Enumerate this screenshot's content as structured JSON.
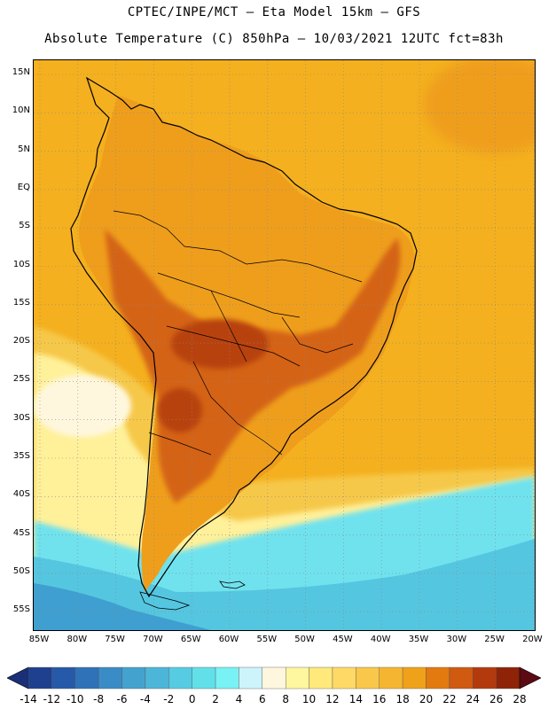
{
  "title_line1": "CPTEC/INPE/MCT –  Eta Model 15km – GFS",
  "title_line2": "Absolute Temperature (C) 850hPa – 10/03/2021 12UTC fct=83h",
  "lat_labels": [
    "15N",
    "10N",
    "5N",
    "EQ",
    "5S",
    "10S",
    "15S",
    "20S",
    "25S",
    "30S",
    "35S",
    "40S",
    "45S",
    "50S",
    "55S"
  ],
  "lon_labels": [
    "85W",
    "80W",
    "75W",
    "70W",
    "65W",
    "60W",
    "55W",
    "50W",
    "45W",
    "40W",
    "35W",
    "30W",
    "25W",
    "20W"
  ],
  "colorbar": {
    "labels": [
      "-14",
      "-12",
      "-10",
      "-8",
      "-6",
      "-4",
      "-2",
      "0",
      "2",
      "4",
      "6",
      "8",
      "10",
      "12",
      "14",
      "16",
      "18",
      "20",
      "22",
      "24",
      "26",
      "28"
    ],
    "colors": [
      "#1f3f8f",
      "#2659a8",
      "#2f72b8",
      "#3a8cc6",
      "#44a2cf",
      "#4cb6d8",
      "#56cbe2",
      "#62e0ea",
      "#78f2f4",
      "#cdf3fb",
      "#fff7dd",
      "#fff6a0",
      "#ffe97a",
      "#ffd965",
      "#f9c74a",
      "#f5b530",
      "#f0a11a",
      "#e27a10",
      "#cf5a10",
      "#b33a0c",
      "#8e2308"
    ],
    "low_arrow_color": "#1a2f78",
    "high_arrow_color": "#5c0a14"
  },
  "field_colors": {
    "ocean_warm": "#f4b01e",
    "tropical_land": "#ef9e1c",
    "hot_core": "#d46414",
    "hottest": "#b8420e",
    "mild_south": "#f6c84a",
    "cool_band": "#fff09a",
    "cold_sea": "#6fe2ee",
    "colder_sea": "#55c6e0",
    "coldest_sea": "#3f9fd0",
    "coastline": "#000000"
  }
}
